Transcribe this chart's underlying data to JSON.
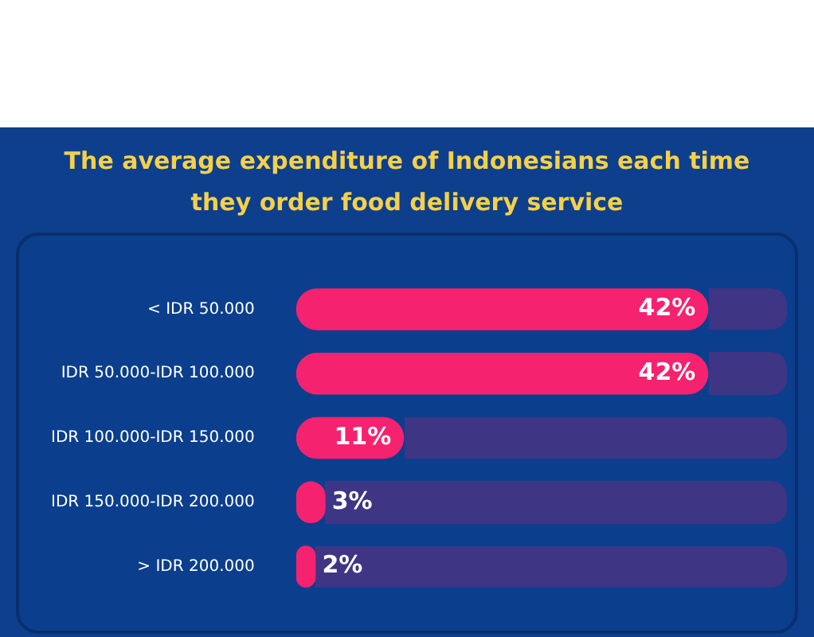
{
  "chart_data": {
    "type": "bar",
    "orientation": "horizontal",
    "title": "The average expenditure of Indonesians each time they order food delivery service",
    "categories": [
      "< IDR 50.000",
      "IDR 50.000-IDR 100.000",
      "IDR 100.000-IDR 150.000",
      "IDR 150.000-IDR 200.000",
      "> IDR 200.000"
    ],
    "values": [
      42,
      42,
      11,
      3,
      2
    ],
    "value_labels": [
      "42%",
      "42%",
      "11%",
      "3%",
      "2%"
    ],
    "color": "#f5226f",
    "grid": false,
    "legend": false,
    "tick_labels": "y"
  }
}
